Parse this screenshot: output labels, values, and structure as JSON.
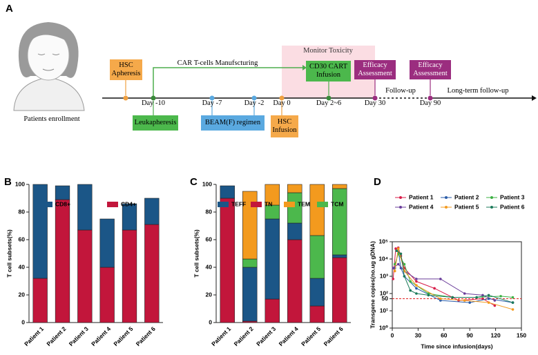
{
  "diagram": {
    "panel_label": "A",
    "enrollment": "Patients enrollment",
    "hsc_apheresis": "HSC Apheresis",
    "manufacturing": "CAR T-cells Manufscturing",
    "monitor": "Monitor Toxicity",
    "infusion": "CD30 CART Infusion",
    "efficacy_1": "Efficacy Assessment",
    "efficacy_2": "Efficacy Assessment",
    "leukapheresis": "Leukapheresis",
    "beam": "BEAM(F) regimen",
    "hsc_infusion": "HSC Infusion",
    "follow_up": "Follow-up",
    "long_term": "Long-term follow-up",
    "days": [
      "Day -10",
      "Day -7",
      "Day -2",
      "Day 0",
      "Day 2~6",
      "Day 30",
      "Day 90"
    ]
  },
  "chart_data": [
    {
      "type": "stacked_bar",
      "panel_label": "B",
      "ylabel": "T cell subsets(%)",
      "categories": [
        "Patient 1",
        "Patient 2",
        "Patient 3",
        "Patient 4",
        "Patient 5",
        "Patient 6"
      ],
      "series": [
        {
          "name": "CD8+",
          "color": "#1b5687",
          "values": [
            68,
            10,
            33,
            35,
            19,
            19
          ]
        },
        {
          "name": "CD4+",
          "color": "#c2163b",
          "values": [
            32,
            89,
            67,
            40,
            67,
            71
          ]
        }
      ],
      "ylim": [
        0,
        100
      ],
      "yticks": [
        0,
        20,
        40,
        60,
        80,
        100
      ]
    },
    {
      "type": "stacked_bar",
      "panel_label": "C",
      "ylabel": "T cell subsets(%)",
      "categories": [
        "Patient 1",
        "Patient 2",
        "Patient 3",
        "Patient 4",
        "Patient 5",
        "Patient 6"
      ],
      "series": [
        {
          "name": "TEFF",
          "color": "#1b5687",
          "values": [
            9,
            39,
            58,
            12,
            20,
            2
          ]
        },
        {
          "name": "TN",
          "color": "#c2163b",
          "values": [
            90,
            1,
            17,
            60,
            12,
            47
          ]
        },
        {
          "name": "TEM",
          "color": "#f39a1e",
          "values": [
            0,
            49,
            15,
            6,
            37,
            3
          ]
        },
        {
          "name": "TCM",
          "color": "#4cb84c",
          "values": [
            0,
            6,
            10,
            22,
            31,
            48
          ]
        }
      ],
      "ylim": [
        0,
        100
      ],
      "yticks": [
        0,
        20,
        40,
        60,
        80,
        100
      ]
    },
    {
      "type": "line",
      "panel_label": "D",
      "xlabel": "Time since infusion(days)",
      "ylabel": "Transgene copies(no.ug gDNA)",
      "log_y": true,
      "hline": 50,
      "hline_color": "#e02020",
      "xlim": [
        0,
        150
      ],
      "xticks": [
        0,
        30,
        60,
        90,
        120,
        150
      ],
      "ylim": [
        1,
        100000
      ],
      "yticks": [
        {
          "value": 1,
          "label": "10⁰"
        },
        {
          "value": 10,
          "label": "10¹"
        },
        50,
        {
          "value": 100,
          "label": "10²"
        },
        {
          "value": 1000,
          "label": "10³"
        },
        {
          "value": 10000,
          "label": "10⁴"
        },
        {
          "value": 100000,
          "label": "10⁵"
        }
      ],
      "series": [
        {
          "name": "Patient 1",
          "color": "#d81e4a",
          "x": [
            1,
            4,
            7,
            10,
            14,
            28,
            49,
            77,
            105,
            119
          ],
          "values": [
            700,
            40000,
            45000,
            15000,
            3000,
            500,
            200,
            40,
            50,
            20
          ]
        },
        {
          "name": "Patient 2",
          "color": "#2a5ca8",
          "x": [
            3,
            7,
            10,
            14,
            28,
            56,
            90,
            112,
            140
          ],
          "values": [
            3000,
            30000,
            3000,
            1000,
            200,
            40,
            30,
            50,
            30
          ]
        },
        {
          "name": "Patient 3",
          "color": "#3cb043",
          "x": [
            3,
            7,
            14,
            21,
            42,
            70,
            98,
            126,
            140
          ],
          "values": [
            5000,
            20000,
            5000,
            500,
            100,
            60,
            60,
            70,
            60
          ]
        },
        {
          "name": "Patient 4",
          "color": "#6a3d9a",
          "x": [
            1,
            7,
            14,
            28,
            56,
            84,
            105,
            119
          ],
          "values": [
            3000,
            5000,
            2000,
            700,
            700,
            100,
            80,
            40
          ]
        },
        {
          "name": "Patient 5",
          "color": "#f39a1e",
          "x": [
            3,
            7,
            14,
            28,
            56,
            84,
            112,
            140
          ],
          "values": [
            2000,
            40000,
            2000,
            300,
            50,
            40,
            30,
            12
          ]
        },
        {
          "name": "Patient 6",
          "color": "#1b7a5a",
          "x": [
            5,
            10,
            14,
            21,
            28,
            42,
            70,
            98,
            112,
            140
          ],
          "values": [
            30000,
            20000,
            1000,
            150,
            100,
            80,
            60,
            60,
            80,
            30
          ]
        }
      ]
    }
  ]
}
